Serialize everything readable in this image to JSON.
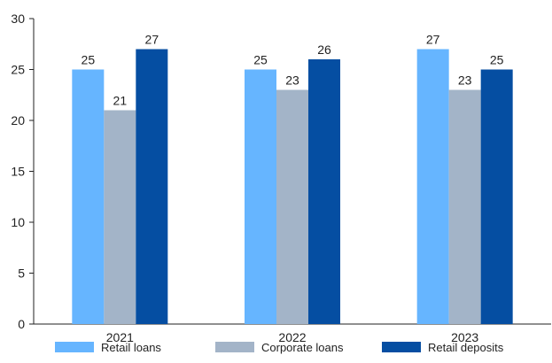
{
  "chart_data": {
    "type": "bar",
    "title": "",
    "xlabel": "",
    "ylabel": "",
    "categories": [
      "2021",
      "2022",
      "2023"
    ],
    "series": [
      {
        "name": "Retail loans",
        "values": [
          25,
          25,
          27
        ],
        "color": "#66b5ff"
      },
      {
        "name": "Corporate loans",
        "values": [
          21,
          23,
          23
        ],
        "color": "#a3b4c8"
      },
      {
        "name": "Retail deposits",
        "values": [
          27,
          26,
          25
        ],
        "color": "#054ea2"
      }
    ],
    "ylim": [
      0,
      30
    ],
    "yticks": [
      0,
      5,
      10,
      15,
      20,
      25,
      30
    ],
    "grid": false,
    "data_labels": true,
    "legend_position": "bottom"
  }
}
